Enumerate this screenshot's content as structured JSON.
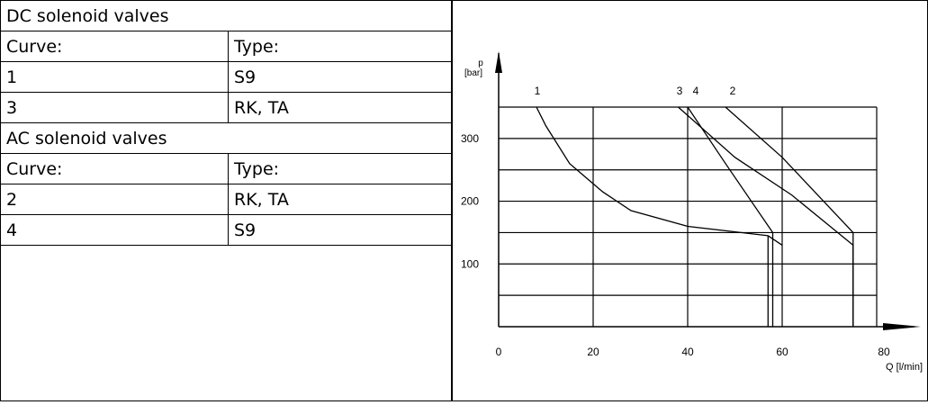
{
  "table": {
    "dc_header": "DC solenoid valves",
    "dc_col_curve": "Curve:",
    "dc_col_type": "Type:",
    "dc_rows": [
      {
        "curve": "1",
        "type": "S9"
      },
      {
        "curve": "3",
        "type": "RK, TA"
      }
    ],
    "ac_header": "AC solenoid valves",
    "ac_col_curve": "Curve:",
    "ac_col_type": "Type:",
    "ac_rows": [
      {
        "curve": "2",
        "type": "RK, TA"
      },
      {
        "curve": "4",
        "type": "S9"
      }
    ]
  },
  "chart_data": {
    "type": "line",
    "ylabel_line1": "p",
    "ylabel_line2": "[bar]",
    "xlabel": "Q [l/min]",
    "xlim": [
      0,
      80
    ],
    "ylim": [
      0,
      350
    ],
    "x_ticks": [
      "0",
      "20",
      "40",
      "60",
      "80"
    ],
    "y_ticks": [
      "100",
      "200",
      "300"
    ],
    "grid": true,
    "series": [
      {
        "name": "1",
        "points": [
          [
            8,
            350
          ],
          [
            10,
            320
          ],
          [
            15,
            260
          ],
          [
            22,
            215
          ],
          [
            28,
            185
          ],
          [
            40,
            160
          ],
          [
            57,
            145
          ],
          [
            60,
            130
          ]
        ],
        "tail": [
          [
            57,
            145
          ],
          [
            57,
            0
          ]
        ]
      },
      {
        "name": "3",
        "points": [
          [
            38,
            350
          ],
          [
            50,
            270
          ],
          [
            62,
            210
          ],
          [
            75,
            130
          ]
        ],
        "tail": [
          [
            75,
            130
          ],
          [
            75,
            0
          ]
        ]
      },
      {
        "name": "4",
        "points": [
          [
            40,
            350
          ],
          [
            48,
            260
          ],
          [
            58,
            150
          ]
        ],
        "tail": [
          [
            58,
            150
          ],
          [
            58,
            0
          ]
        ]
      },
      {
        "name": "2",
        "points": [
          [
            48,
            350
          ],
          [
            60,
            270
          ],
          [
            75,
            150
          ]
        ],
        "tail": [
          [
            75,
            150
          ],
          [
            75,
            0
          ]
        ]
      }
    ]
  }
}
